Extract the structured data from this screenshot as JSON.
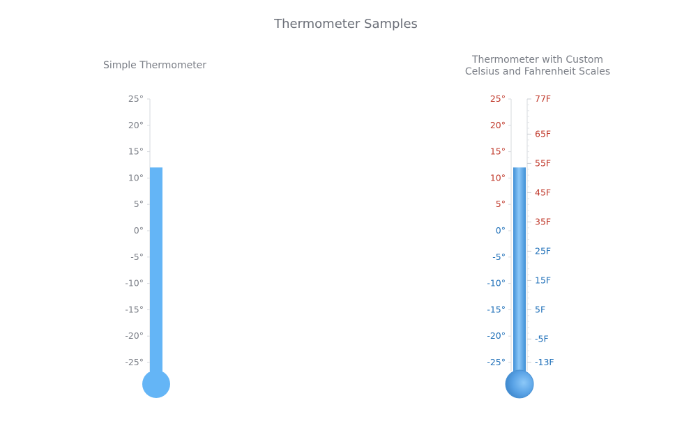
{
  "page": {
    "title": "Thermometer Samples"
  },
  "chart_data": [
    {
      "type": "thermometer",
      "title": "Simple Thermometer",
      "title_lines": [
        "Simple Thermometer"
      ],
      "value": 12,
      "unit": "°C",
      "celsius_scale": {
        "min": -25,
        "max": 25,
        "ticks": [
          25,
          20,
          15,
          10,
          5,
          0,
          -5,
          -10,
          -15,
          -20,
          -25
        ],
        "tick_labels": [
          "25°",
          "20°",
          "15°",
          "10°",
          "5°",
          "0°",
          "-5°",
          "-10°",
          "-15°",
          "-20°",
          "-25°"
        ]
      },
      "colors": {
        "fill": "#64b5f6",
        "label": "#7a7e86",
        "axis": "#d6d9de"
      }
    },
    {
      "type": "thermometer",
      "title": "Thermometer with Custom Celsius and Fahrenheit Scales",
      "title_lines": [
        "Thermometer with Custom",
        "Celsius and Fahrenheit Scales"
      ],
      "value": 12,
      "unit": "°C",
      "celsius_scale": {
        "min": -25,
        "max": 25,
        "ticks": [
          25,
          20,
          15,
          10,
          5,
          0,
          -5,
          -10,
          -15,
          -20,
          -25
        ],
        "tick_labels": [
          "25°",
          "20°",
          "15°",
          "10°",
          "5°",
          "0°",
          "-5°",
          "-10°",
          "-15°",
          "-20°",
          "-25°"
        ]
      },
      "fahrenheit_scale": {
        "min": -13,
        "max": 77,
        "ticks": [
          77,
          65,
          55,
          45,
          35,
          25,
          15,
          5,
          -5,
          -13
        ],
        "tick_labels": [
          "77F",
          "65F",
          "55F",
          "45F",
          "35F",
          "25F",
          "15F",
          "5F",
          "-5F",
          "-13F"
        ]
      },
      "colors": {
        "fill": "#5aa9ea",
        "warm_label": "#c0392b",
        "cold_label": "#1e6fb8",
        "axis": "#d6d9de"
      }
    }
  ]
}
